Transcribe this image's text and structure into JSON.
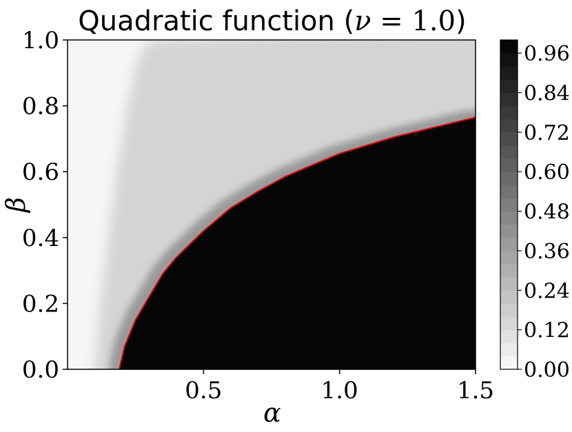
{
  "chart_data": {
    "type": "heatmap",
    "title": {
      "prefix": "Quadratic function (",
      "math": "ν",
      "eq": " = 1.0",
      "suffix": ")"
    },
    "xlabel": "α",
    "ylabel": "β",
    "xlim": [
      0.0,
      1.5
    ],
    "ylim": [
      0.0,
      1.0
    ],
    "x_ticks": [
      0.5,
      1.0,
      1.5
    ],
    "x_tick_labels": [
      "0.5",
      "1.0",
      "1.5"
    ],
    "y_ticks": [
      0.0,
      0.2,
      0.4,
      0.6,
      0.8,
      1.0
    ],
    "y_tick_labels": [
      "0.0",
      "0.2",
      "0.4",
      "0.6",
      "0.8",
      "1.0"
    ],
    "colormap": "greys",
    "color_range": [
      0.0,
      1.0
    ],
    "colorbar_ticks": [
      0.0,
      0.12,
      0.24,
      0.36,
      0.48,
      0.6,
      0.72,
      0.84,
      0.96
    ],
    "colorbar_tick_labels": [
      "0.00",
      "0.12",
      "0.24",
      "0.36",
      "0.48",
      "0.60",
      "0.72",
      "0.84",
      "0.96"
    ],
    "boundary_curve": {
      "color": "#e00000",
      "points": [
        [
          0.19,
          0.0
        ],
        [
          0.21,
          0.07
        ],
        [
          0.25,
          0.15
        ],
        [
          0.3,
          0.22
        ],
        [
          0.35,
          0.29
        ],
        [
          0.4,
          0.34
        ],
        [
          0.5,
          0.42
        ],
        [
          0.6,
          0.49
        ],
        [
          0.7,
          0.54
        ],
        [
          0.8,
          0.585
        ],
        [
          0.9,
          0.62
        ],
        [
          1.0,
          0.655
        ],
        [
          1.1,
          0.68
        ],
        [
          1.2,
          0.705
        ],
        [
          1.3,
          0.725
        ],
        [
          1.4,
          0.745
        ],
        [
          1.5,
          0.765
        ]
      ]
    },
    "fade_boundary": {
      "points": [
        [
          0.1,
          0.0
        ],
        [
          0.12,
          0.2
        ],
        [
          0.15,
          0.4
        ],
        [
          0.18,
          0.6
        ],
        [
          0.22,
          0.8
        ],
        [
          0.26,
          0.95
        ],
        [
          0.3,
          1.0
        ]
      ]
    }
  }
}
